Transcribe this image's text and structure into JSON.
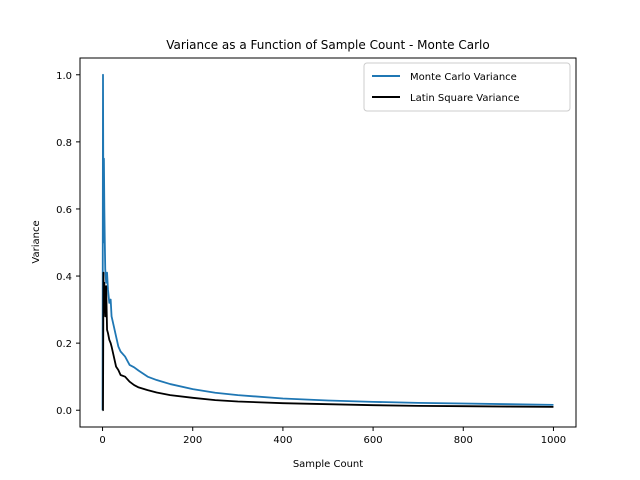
{
  "chart_data": {
    "type": "line",
    "title": "Variance as a Function of Sample Count - Monte Carlo",
    "xlabel": "Sample Count",
    "ylabel": "Variance",
    "xlim": [
      -50,
      1050
    ],
    "ylim": [
      -0.05,
      1.05
    ],
    "xticks": [
      0,
      200,
      400,
      600,
      800,
      1000
    ],
    "yticks": [
      0.0,
      0.2,
      0.4,
      0.6,
      0.8,
      1.0
    ],
    "xtick_labels": [
      "0",
      "200",
      "400",
      "600",
      "800",
      "1000"
    ],
    "ytick_labels": [
      "0.0",
      "0.2",
      "0.4",
      "0.6",
      "0.8",
      "1.0"
    ],
    "grid": false,
    "legend_position": "top-right",
    "series": [
      {
        "name": "Monte Carlo Variance",
        "color": "#1f77b4",
        "x": [
          0,
          1,
          2,
          3,
          4,
          5,
          6,
          8,
          10,
          12,
          15,
          18,
          20,
          25,
          30,
          35,
          40,
          50,
          60,
          70,
          80,
          100,
          120,
          150,
          200,
          250,
          300,
          400,
          500,
          600,
          700,
          800,
          900,
          1000
        ],
        "y": [
          0.0,
          1.0,
          0.5,
          0.75,
          0.6,
          0.5,
          0.42,
          0.38,
          0.41,
          0.36,
          0.32,
          0.33,
          0.28,
          0.25,
          0.22,
          0.19,
          0.175,
          0.16,
          0.135,
          0.128,
          0.118,
          0.1,
          0.09,
          0.078,
          0.063,
          0.052,
          0.045,
          0.035,
          0.029,
          0.025,
          0.022,
          0.02,
          0.018,
          0.016
        ]
      },
      {
        "name": "Latin Square Variance",
        "color": "#000000",
        "x": [
          0,
          1,
          2,
          3,
          4,
          5,
          6,
          8,
          10,
          12,
          15,
          18,
          20,
          25,
          30,
          35,
          40,
          50,
          60,
          70,
          80,
          100,
          120,
          150,
          200,
          250,
          300,
          400,
          500,
          600,
          700,
          800,
          900,
          1000
        ],
        "y": [
          0.0,
          0.0,
          0.41,
          0.3,
          0.38,
          0.32,
          0.28,
          0.37,
          0.24,
          0.23,
          0.21,
          0.2,
          0.19,
          0.16,
          0.13,
          0.12,
          0.105,
          0.1,
          0.085,
          0.075,
          0.068,
          0.06,
          0.053,
          0.045,
          0.037,
          0.03,
          0.026,
          0.021,
          0.018,
          0.015,
          0.013,
          0.012,
          0.011,
          0.01
        ]
      }
    ]
  }
}
